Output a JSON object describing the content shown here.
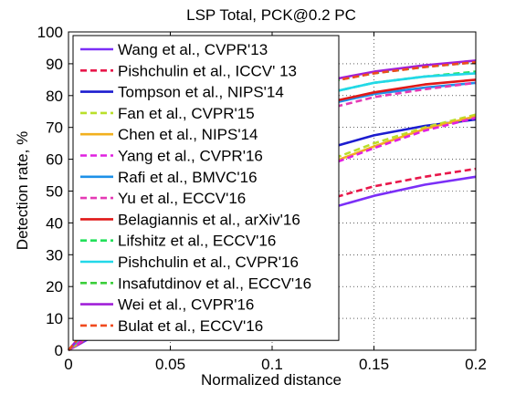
{
  "chart_data": {
    "type": "line",
    "title": "LSP Total, PCK@0.2 PC",
    "xlabel": "Normalized distance",
    "ylabel": "Detection rate, %",
    "xlim": [
      0,
      0.2
    ],
    "ylim": [
      0,
      100
    ],
    "x_ticks": [
      "0",
      "0.05",
      "0.1",
      "0.15",
      "0.2"
    ],
    "y_ticks": [
      "0",
      "10",
      "20",
      "30",
      "40",
      "50",
      "60",
      "70",
      "80",
      "90",
      "100"
    ],
    "grid": true,
    "legend_position": "top-left",
    "series": [
      {
        "name": "Wang et al., CVPR'13",
        "color": "#7b2ff7",
        "dash": "solid",
        "x": [
          0,
          0.025,
          0.05,
          0.075,
          0.1,
          0.125,
          0.15,
          0.175,
          0.2
        ],
        "y": [
          0,
          9,
          21,
          31,
          38,
          44,
          48.5,
          52,
          54.5
        ]
      },
      {
        "name": "Pishchulin et al., ICCV' 13",
        "color": "#e8174a",
        "dash": "dashed",
        "x": [
          0,
          0.025,
          0.05,
          0.075,
          0.1,
          0.125,
          0.15,
          0.175,
          0.2
        ],
        "y": [
          0,
          10,
          23,
          33,
          41,
          47,
          51.5,
          54.5,
          57
        ]
      },
      {
        "name": "Tompson et al., NIPS'14",
        "color": "#1c1ccf",
        "dash": "solid",
        "x": [
          0,
          0.025,
          0.05,
          0.075,
          0.1,
          0.125,
          0.15,
          0.175,
          0.2
        ],
        "y": [
          0,
          12,
          30,
          45,
          55,
          63,
          67.5,
          70.5,
          72.5
        ]
      },
      {
        "name": "Fan et al., CVPR'15",
        "color": "#b9e02a",
        "dash": "dashed",
        "x": [
          0,
          0.025,
          0.05,
          0.075,
          0.1,
          0.125,
          0.15,
          0.175,
          0.2
        ],
        "y": [
          0,
          11,
          27,
          41,
          51,
          59,
          65,
          70,
          74
        ]
      },
      {
        "name": "Chen et al., NIPS'14",
        "color": "#f2b01e",
        "dash": "solid",
        "x": [
          0,
          0.025,
          0.05,
          0.075,
          0.1,
          0.125,
          0.15,
          0.175,
          0.2
        ],
        "y": [
          0,
          11,
          27,
          40,
          50,
          58,
          64,
          69.5,
          73.5
        ]
      },
      {
        "name": "Yang et al., CVPR'16",
        "color": "#e020e0",
        "dash": "dashed",
        "x": [
          0,
          0.025,
          0.05,
          0.075,
          0.1,
          0.125,
          0.15,
          0.175,
          0.2
        ],
        "y": [
          0,
          11,
          26,
          40,
          50,
          57.5,
          63.5,
          69,
          73
        ]
      },
      {
        "name": "Rafi et al., BMVC'16",
        "color": "#1e90e8",
        "dash": "solid",
        "x": [
          0,
          0.025,
          0.05,
          0.075,
          0.1,
          0.125,
          0.15,
          0.175,
          0.2
        ],
        "y": [
          0,
          16,
          42,
          60,
          70.5,
          77,
          80.5,
          82.5,
          84
        ]
      },
      {
        "name": "Yu et al., ECCV'16",
        "color": "#e53ab5",
        "dash": "dashed",
        "x": [
          0,
          0.025,
          0.05,
          0.075,
          0.1,
          0.125,
          0.15,
          0.175,
          0.2
        ],
        "y": [
          0,
          16,
          41,
          58.5,
          69,
          75.5,
          79.5,
          82,
          84
        ]
      },
      {
        "name": "Belagiannis et al., arXiv'16",
        "color": "#e01818",
        "dash": "solid",
        "x": [
          0,
          0.025,
          0.05,
          0.075,
          0.1,
          0.125,
          0.15,
          0.175,
          0.2
        ],
        "y": [
          0,
          17,
          43,
          61,
          71.5,
          77.5,
          81,
          83.5,
          85
        ]
      },
      {
        "name": "Lifshitz et al., ECCV'16",
        "color": "#22e05a",
        "dash": "dashed",
        "x": [
          0,
          0.025,
          0.05,
          0.075,
          0.1,
          0.125,
          0.15,
          0.175,
          0.2
        ],
        "y": [
          0,
          17,
          44,
          63,
          74,
          80.5,
          84,
          86,
          87.5
        ]
      },
      {
        "name": "Pishchulin et al., CVPR'16",
        "color": "#22d8e8",
        "dash": "solid",
        "x": [
          0,
          0.025,
          0.05,
          0.075,
          0.1,
          0.125,
          0.15,
          0.175,
          0.2
        ],
        "y": [
          0,
          17,
          44,
          63,
          74,
          80.5,
          84,
          86,
          87
        ]
      },
      {
        "name": "Insafutdinov et al., ECCV'16",
        "color": "#3ccf3c",
        "dash": "dashed",
        "x": [
          0,
          0.025,
          0.05,
          0.075,
          0.1,
          0.125,
          0.15,
          0.175,
          0.2
        ],
        "y": [
          0,
          19,
          49,
          68,
          78.5,
          84,
          87,
          89,
          90.5
        ]
      },
      {
        "name": "Wei et al., CVPR'16",
        "color": "#a020d8",
        "dash": "solid",
        "x": [
          0,
          0.025,
          0.05,
          0.075,
          0.1,
          0.125,
          0.15,
          0.175,
          0.2
        ],
        "y": [
          0,
          19,
          50,
          69,
          79,
          84.5,
          87.5,
          89.5,
          91
        ]
      },
      {
        "name": "Bulat et al., ECCV'16",
        "color": "#f04a1e",
        "dash": "dashed",
        "x": [
          0,
          0.025,
          0.05,
          0.075,
          0.1,
          0.125,
          0.15,
          0.175,
          0.2
        ],
        "y": [
          0,
          19,
          49.5,
          68.5,
          78.5,
          84,
          87,
          89,
          90.5
        ]
      }
    ]
  }
}
